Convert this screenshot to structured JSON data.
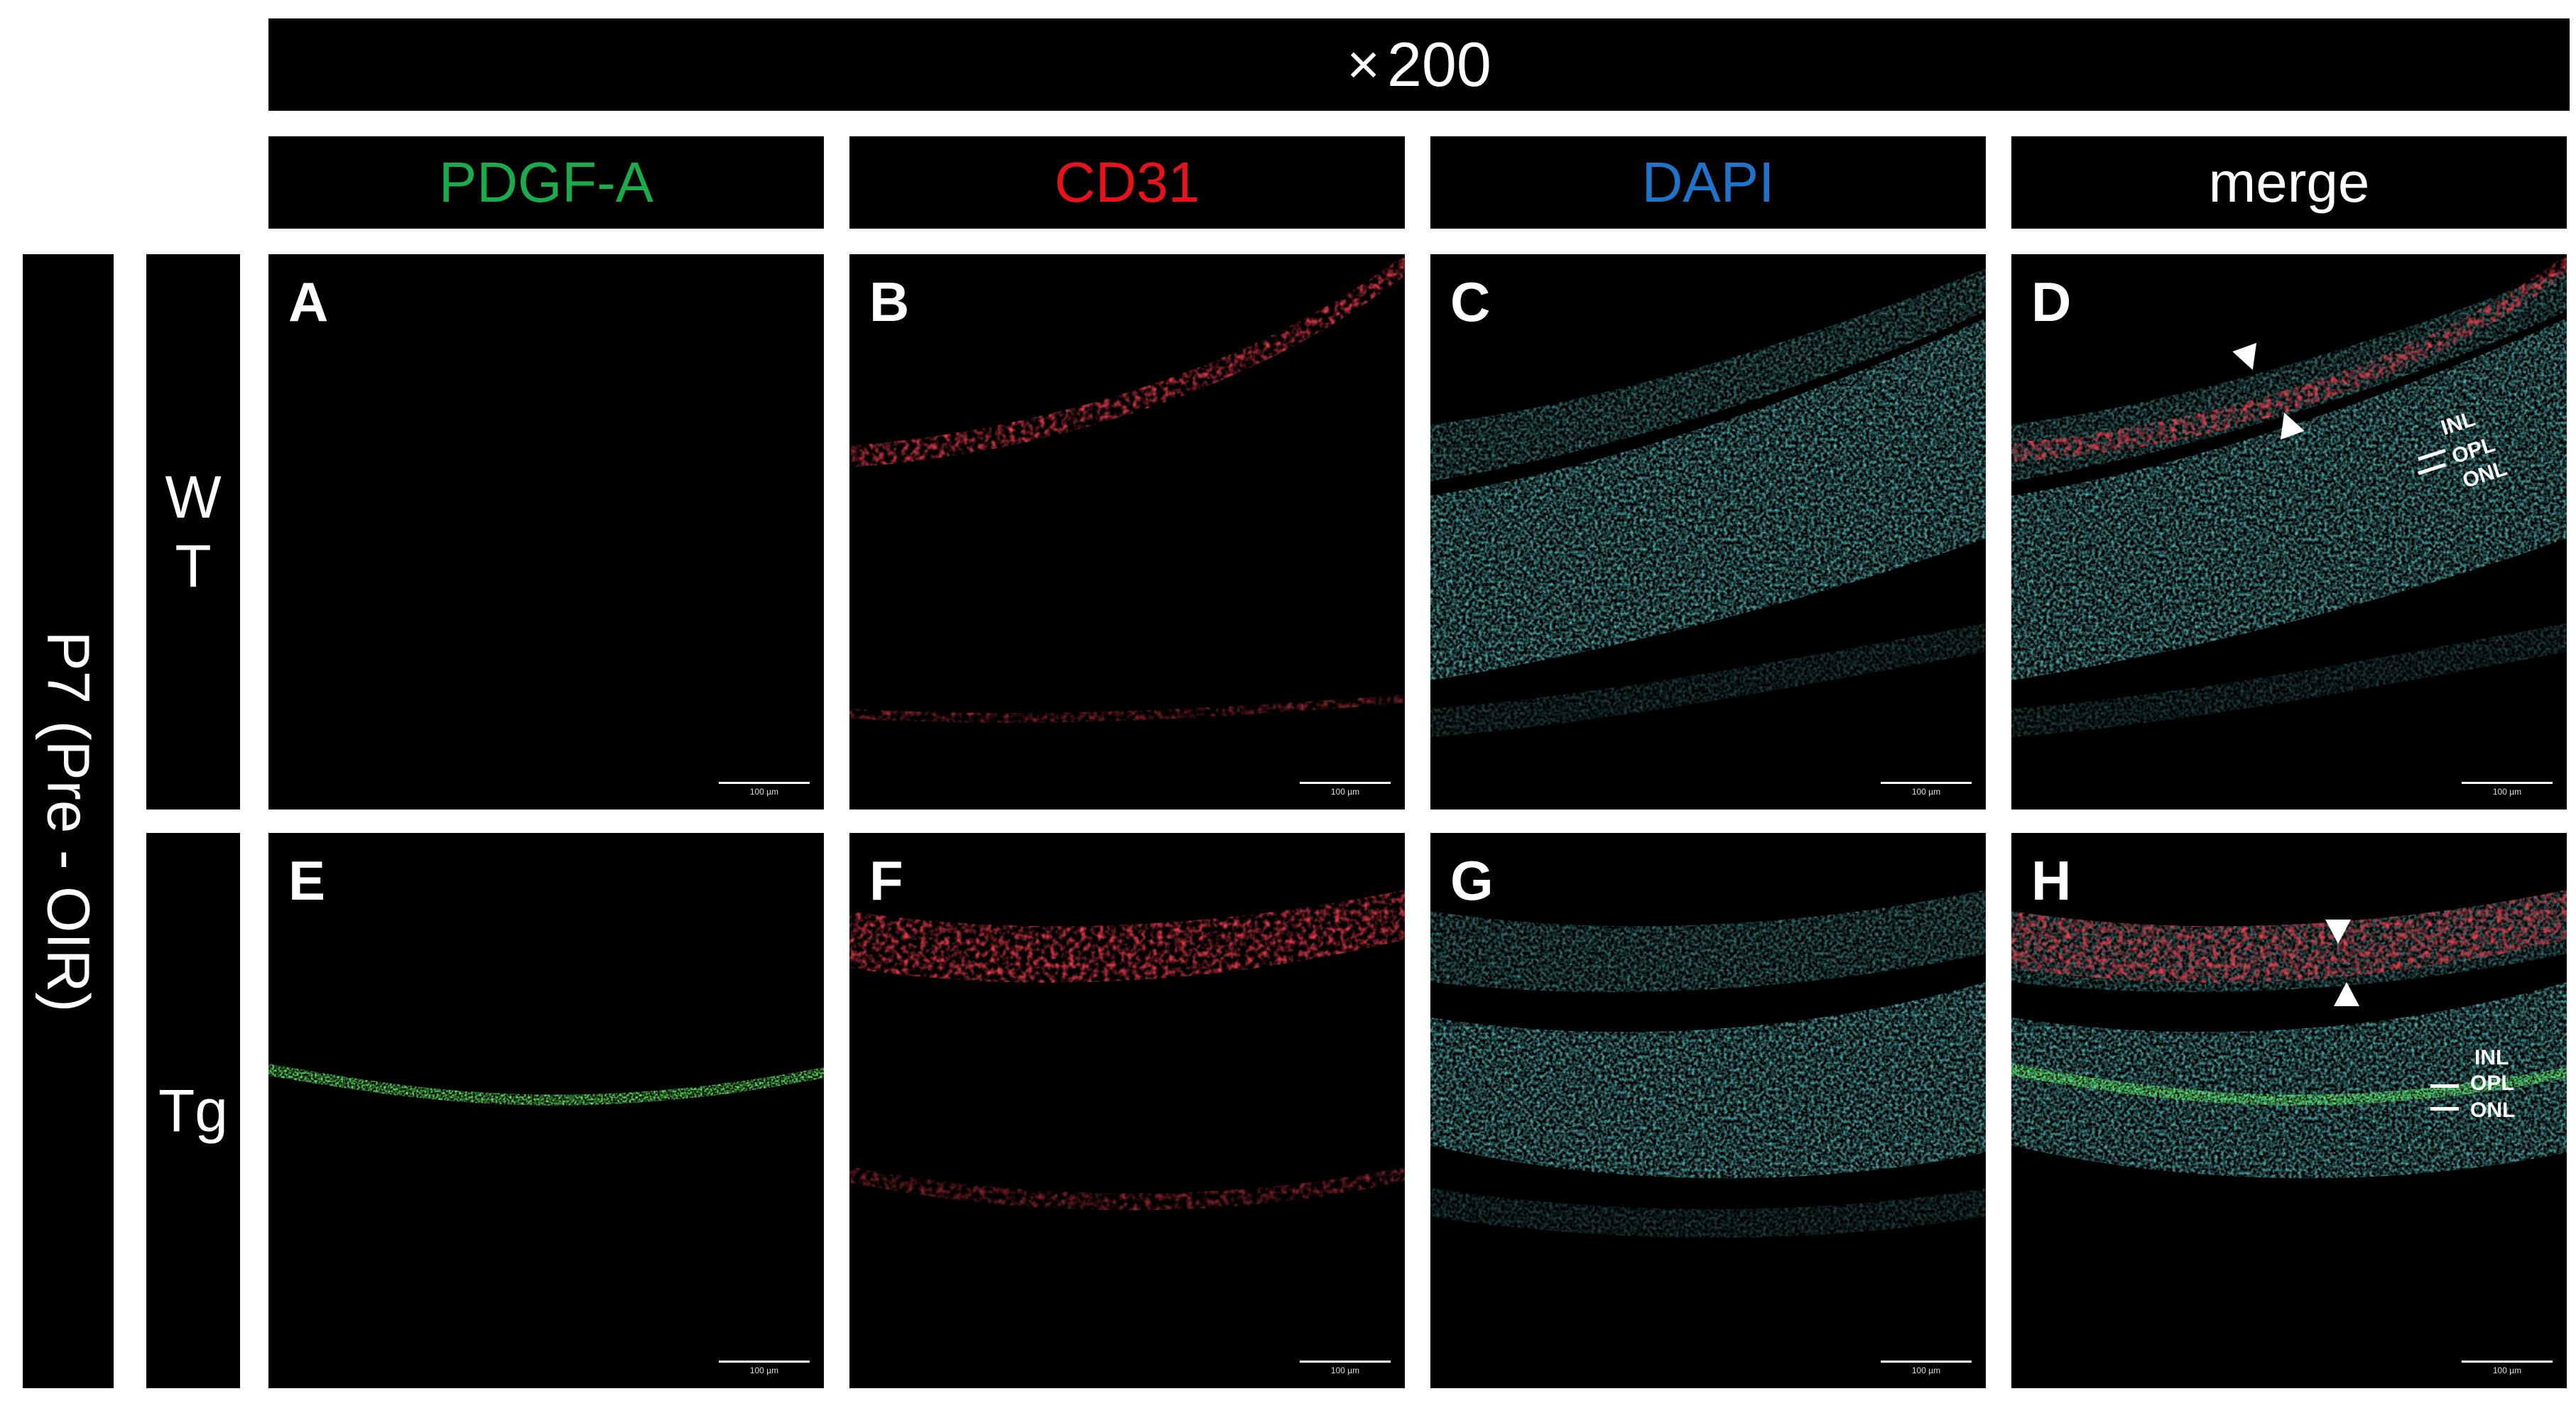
{
  "magnification": {
    "times": "×",
    "value": "200"
  },
  "columns": [
    {
      "label": "PDGF-A",
      "color": "#1aab4b"
    },
    {
      "label": "CD31",
      "color": "#e8121b"
    },
    {
      "label": "DAPI",
      "color": "#1f73c8"
    },
    {
      "label": "merge",
      "color": "#ffffff"
    }
  ],
  "group_label": "P7 (Pre - OIR)",
  "rows": [
    {
      "label_line1": "W",
      "label_line2": "T"
    },
    {
      "label_line1": "Tg",
      "label_line2": ""
    }
  ],
  "panels": {
    "A": "A",
    "B": "B",
    "C": "C",
    "D": "D",
    "E": "E",
    "F": "F",
    "G": "G",
    "H": "H"
  },
  "scale_bar": "100 µm",
  "layers": {
    "inl": "INL",
    "opl": "OPL",
    "onl": "ONL"
  },
  "colors": {
    "background": "#000000",
    "green": "#1fd11f",
    "red": "#d4121c",
    "cyan": "#2fb7b7"
  }
}
